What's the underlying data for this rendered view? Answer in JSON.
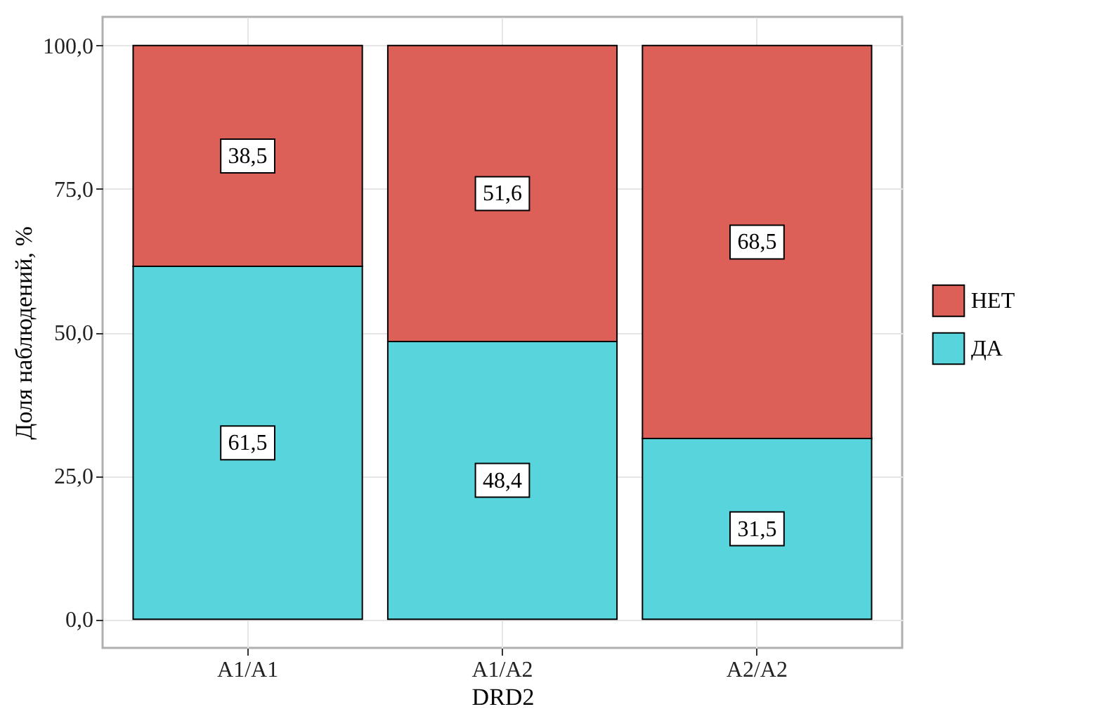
{
  "chart_data": {
    "type": "bar",
    "stacked": true,
    "xlabel": "DRD2",
    "ylabel": "Доля наблюдений, %",
    "categories": [
      "A1/A1",
      "A1/A2",
      "A2/A2"
    ],
    "series": [
      {
        "name": "ДА",
        "color": "#57d4dc",
        "values": [
          61.5,
          48.4,
          31.5
        ],
        "value_labels": [
          "61,5",
          "48,4",
          "31,5"
        ]
      },
      {
        "name": "НЕТ",
        "color": "#dc5f58",
        "values": [
          38.5,
          51.6,
          68.5
        ],
        "value_labels": [
          "38,5",
          "51,6",
          "68,5"
        ]
      }
    ],
    "ylim": [
      -5,
      105
    ],
    "yticks": [
      {
        "value": 0,
        "label": "0,0"
      },
      {
        "value": 25,
        "label": "25,0"
      },
      {
        "value": 50,
        "label": "50,0"
      },
      {
        "value": 75,
        "label": "75,0"
      },
      {
        "value": 100,
        "label": "100,0"
      }
    ],
    "grid": true,
    "legend": "right"
  }
}
